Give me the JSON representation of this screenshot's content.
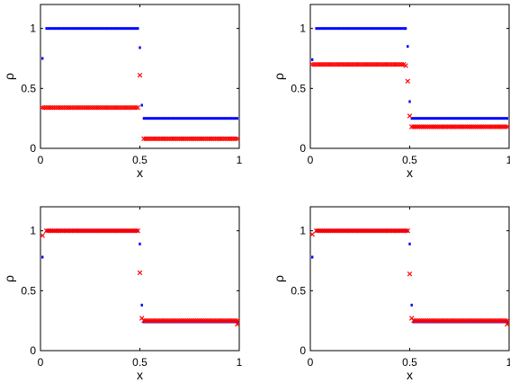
{
  "chart_data": [
    {
      "type": "scatter",
      "xlabel": "x",
      "ylabel": "ρ",
      "xlim": [
        0,
        1
      ],
      "ylim": [
        0,
        1.2
      ],
      "xticks": [
        "0",
        "0.5",
        "1"
      ],
      "yticks": [
        "0",
        "0.5",
        "1"
      ],
      "series": [
        {
          "marker": "dot",
          "color": "#0000ff",
          "segments": [
            {
              "x0": 0.03,
              "x1": 0.49,
              "step": 0.01,
              "y": 1.0
            },
            {
              "x0": 0.52,
              "x1": 0.99,
              "step": 0.01,
              "y": 0.25
            }
          ],
          "points": [
            [
              0.01,
              0.75
            ],
            [
              0.5,
              0.84
            ],
            [
              0.51,
              0.36
            ]
          ]
        },
        {
          "marker": "cross",
          "color": "#ff0000",
          "segments": [
            {
              "x0": 0.01,
              "x1": 0.49,
              "step": 0.01,
              "y": 0.34
            },
            {
              "x0": 0.52,
              "x1": 0.99,
              "step": 0.01,
              "y": 0.08
            }
          ],
          "points": [
            [
              0.5,
              0.61
            ]
          ]
        }
      ]
    },
    {
      "type": "scatter",
      "xlabel": "x",
      "ylabel": "ρ",
      "xlim": [
        0,
        1
      ],
      "ylim": [
        0,
        1.2
      ],
      "xticks": [
        "0",
        "0.5",
        "1"
      ],
      "yticks": [
        "0",
        "0.5",
        "1"
      ],
      "series": [
        {
          "marker": "dot",
          "color": "#0000ff",
          "segments": [
            {
              "x0": 0.03,
              "x1": 0.48,
              "step": 0.01,
              "y": 1.0
            },
            {
              "x0": 0.51,
              "x1": 0.99,
              "step": 0.01,
              "y": 0.25
            }
          ],
          "points": [
            [
              0.01,
              0.74
            ],
            [
              0.49,
              0.85
            ],
            [
              0.5,
              0.39
            ]
          ]
        },
        {
          "marker": "cross",
          "color": "#ff0000",
          "segments": [
            {
              "x0": 0.01,
              "x1": 0.47,
              "step": 0.01,
              "y": 0.7
            },
            {
              "x0": 0.51,
              "x1": 0.99,
              "step": 0.01,
              "y": 0.18
            }
          ],
          "points": [
            [
              0.48,
              0.69
            ],
            [
              0.49,
              0.56
            ],
            [
              0.5,
              0.27
            ]
          ]
        }
      ]
    },
    {
      "type": "scatter",
      "xlabel": "x",
      "ylabel": "ρ",
      "xlim": [
        0,
        1
      ],
      "ylim": [
        0,
        1.2
      ],
      "xticks": [
        "0",
        "0.5",
        "1"
      ],
      "yticks": [
        "0",
        "0.5",
        "1"
      ],
      "series": [
        {
          "marker": "dot",
          "color": "#0000ff",
          "segments": [
            {
              "x0": 0.03,
              "x1": 0.49,
              "step": 0.01,
              "y": 1.0
            },
            {
              "x0": 0.52,
              "x1": 0.99,
              "step": 0.01,
              "y": 0.24
            }
          ],
          "points": [
            [
              0.01,
              0.78
            ],
            [
              0.5,
              0.89
            ],
            [
              0.51,
              0.38
            ]
          ]
        },
        {
          "marker": "cross",
          "color": "#ff0000",
          "segments": [
            {
              "x0": 0.03,
              "x1": 0.49,
              "step": 0.01,
              "y": 1.0
            },
            {
              "x0": 0.52,
              "x1": 0.99,
              "step": 0.01,
              "y": 0.25
            }
          ],
          "points": [
            [
              0.01,
              0.96
            ],
            [
              0.5,
              0.65
            ],
            [
              0.51,
              0.27
            ],
            [
              0.99,
              0.22
            ]
          ]
        }
      ]
    },
    {
      "type": "scatter",
      "xlabel": "x",
      "ylabel": "ρ",
      "xlim": [
        0,
        1
      ],
      "ylim": [
        0,
        1.2
      ],
      "xticks": [
        "0",
        "0.5",
        "1"
      ],
      "yticks": [
        "0",
        "0.5",
        "1"
      ],
      "series": [
        {
          "marker": "dot",
          "color": "#0000ff",
          "segments": [
            {
              "x0": 0.03,
              "x1": 0.49,
              "step": 0.01,
              "y": 1.0
            },
            {
              "x0": 0.52,
              "x1": 0.99,
              "step": 0.01,
              "y": 0.24
            }
          ],
          "points": [
            [
              0.01,
              0.78
            ],
            [
              0.5,
              0.89
            ],
            [
              0.51,
              0.38
            ]
          ]
        },
        {
          "marker": "cross",
          "color": "#ff0000",
          "segments": [
            {
              "x0": 0.03,
              "x1": 0.49,
              "step": 0.01,
              "y": 1.0
            },
            {
              "x0": 0.52,
              "x1": 0.99,
              "step": 0.01,
              "y": 0.25
            }
          ],
          "points": [
            [
              0.01,
              0.97
            ],
            [
              0.5,
              0.64
            ],
            [
              0.51,
              0.27
            ],
            [
              0.99,
              0.22
            ]
          ]
        }
      ]
    }
  ]
}
